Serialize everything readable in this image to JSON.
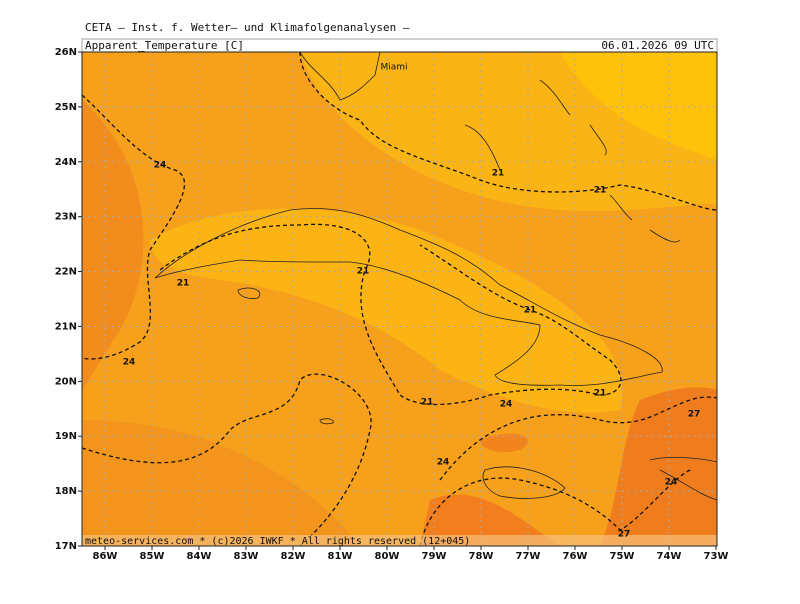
{
  "header": {
    "institute": "CETA – Inst. f. Wetter– und Klimafolgenanalysen –",
    "variable": "Apparent_Temperature [C]",
    "valid_time": "06.01.2026 09 UTC",
    "footer": "meteo-services.com * (c)2026 IWKF * All rights reserved (12+045)"
  },
  "map": {
    "city": "Miami",
    "lon_ticks": [
      {
        "value": -86,
        "label": "86W"
      },
      {
        "value": -85,
        "label": "85W"
      },
      {
        "value": -84,
        "label": "84W"
      },
      {
        "value": -83,
        "label": "83W"
      },
      {
        "value": -82,
        "label": "82W"
      },
      {
        "value": -81,
        "label": "81W"
      },
      {
        "value": -80,
        "label": "80W"
      },
      {
        "value": -79,
        "label": "79W"
      },
      {
        "value": -78,
        "label": "78W"
      },
      {
        "value": -77,
        "label": "77W"
      },
      {
        "value": -76,
        "label": "76W"
      },
      {
        "value": -75,
        "label": "75W"
      },
      {
        "value": -74,
        "label": "74W"
      },
      {
        "value": -73,
        "label": "73W"
      }
    ],
    "lat_ticks": [
      {
        "value": 26,
        "label": "26N"
      },
      {
        "value": 25,
        "label": "25N"
      },
      {
        "value": 24,
        "label": "24N"
      },
      {
        "value": 23,
        "label": "23N"
      },
      {
        "value": 22,
        "label": "22N"
      },
      {
        "value": 21,
        "label": "21N"
      },
      {
        "value": 20,
        "label": "20N"
      },
      {
        "value": 19,
        "label": "19N"
      },
      {
        "value": 18,
        "label": "18N"
      },
      {
        "value": 17,
        "label": "17N"
      }
    ],
    "contour_labels": [
      24,
      24,
      21,
      21,
      21,
      21,
      21,
      21,
      24,
      24,
      21,
      27,
      24,
      27
    ]
  }
}
